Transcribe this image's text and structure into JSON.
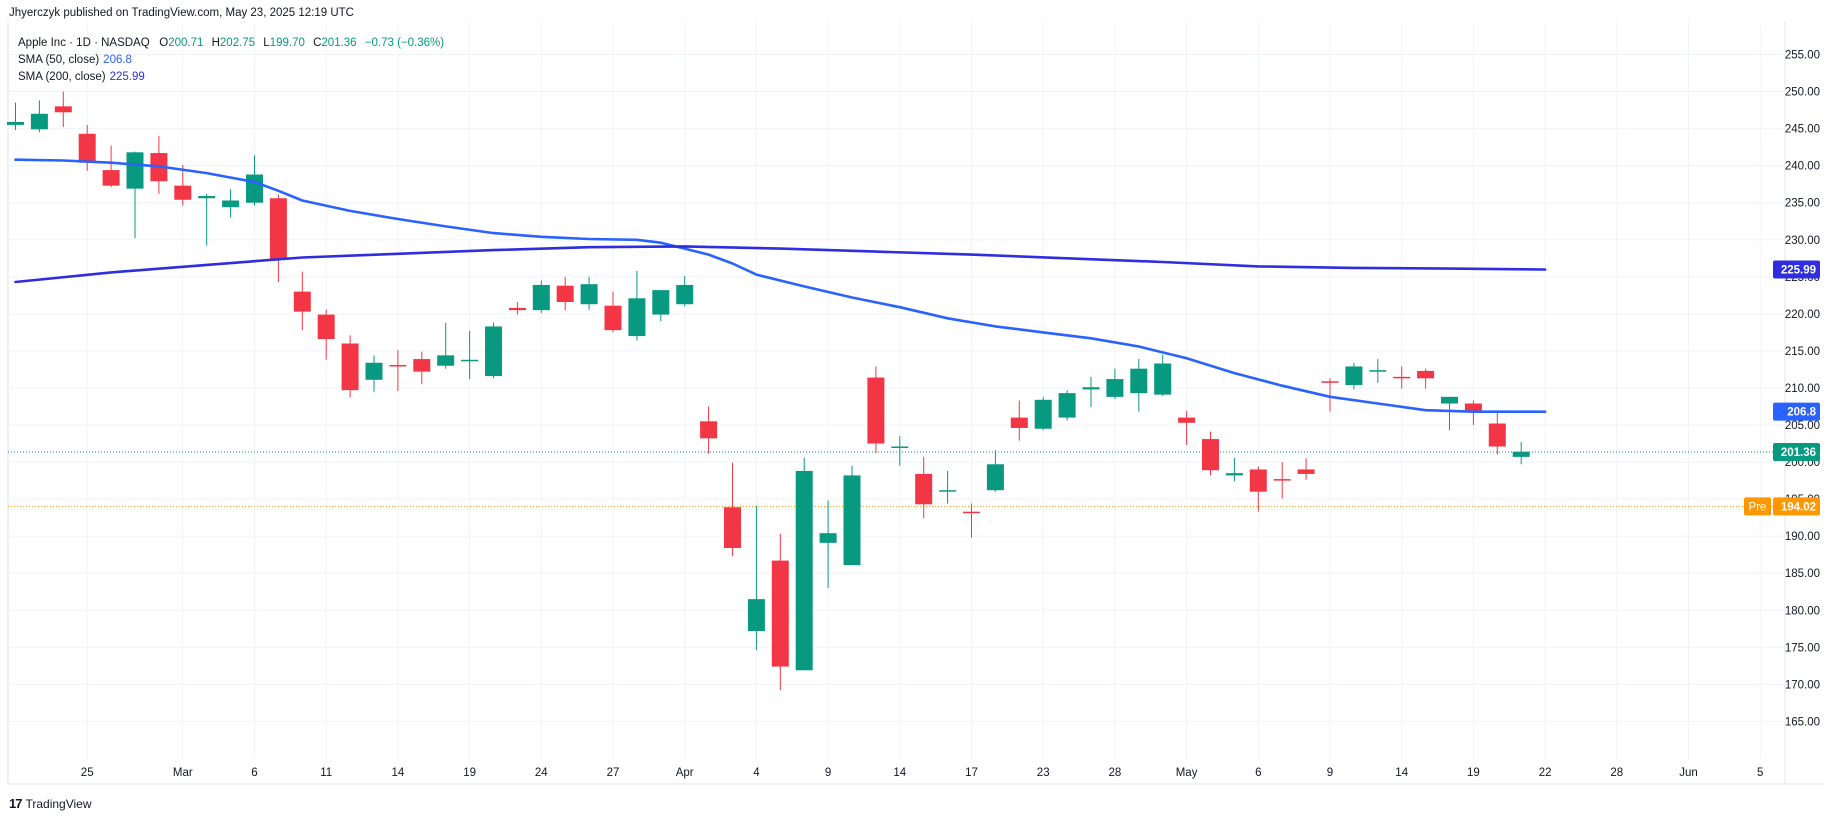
{
  "publisher": "Jhyerczyk published on TradingView.com, May 23, 2025 12:19 UTC",
  "legend": {
    "symbol": "Apple Inc · 1D · NASDAQ",
    "o_label": "O",
    "o": "200.71",
    "h_label": "H",
    "h": "202.75",
    "l_label": "L",
    "l": "199.70",
    "c_label": "C",
    "c": "201.36",
    "change": "−0.73 (−0.36%)",
    "sma50_label": "SMA (50, close)",
    "sma50_value": "206.8",
    "sma200_label": "SMA (200, close)",
    "sma200_value": "225.99"
  },
  "footer": {
    "logo": "17",
    "brand": "TradingView"
  },
  "colors": {
    "up": "#089981",
    "down": "#f23645",
    "sma50": "#2962ff",
    "sma200": "#2e2ee0",
    "pre": "#ff9800"
  },
  "chart_data": {
    "type": "candlestick",
    "title": "Apple Inc · 1D · NASDAQ",
    "ylim": [
      161,
      258
    ],
    "y_ticks": [
      "255.00",
      "250.00",
      "245.00",
      "240.00",
      "235.00",
      "230.00",
      "225.00",
      "220.00",
      "215.00",
      "210.00",
      "205.00",
      "200.00",
      "195.00",
      "190.00",
      "185.00",
      "180.00",
      "175.00",
      "170.00",
      "165.00"
    ],
    "x_ticks": [
      {
        "label": "25",
        "day": 3
      },
      {
        "label": "Mar",
        "day": 7
      },
      {
        "label": "6",
        "day": 10
      },
      {
        "label": "11",
        "day": 13
      },
      {
        "label": "14",
        "day": 16
      },
      {
        "label": "19",
        "day": 19
      },
      {
        "label": "24",
        "day": 22
      },
      {
        "label": "27",
        "day": 25
      },
      {
        "label": "Apr",
        "day": 28
      },
      {
        "label": "4",
        "day": 31
      },
      {
        "label": "9",
        "day": 34
      },
      {
        "label": "14",
        "day": 37
      },
      {
        "label": "17",
        "day": 40
      },
      {
        "label": "23",
        "day": 43
      },
      {
        "label": "28",
        "day": 46
      },
      {
        "label": "May",
        "day": 49
      },
      {
        "label": "6",
        "day": 52
      },
      {
        "label": "9",
        "day": 55
      },
      {
        "label": "14",
        "day": 58
      },
      {
        "label": "19",
        "day": 61
      },
      {
        "label": "22",
        "day": 64
      },
      {
        "label": "28",
        "day": 67
      },
      {
        "label": "Jun",
        "day": 70
      },
      {
        "label": "5",
        "day": 73
      }
    ],
    "candles": [
      {
        "o": 245.5,
        "h": 248.5,
        "l": 244.8,
        "c": 245.9
      },
      {
        "o": 244.9,
        "h": 248.8,
        "l": 244.5,
        "c": 247.0
      },
      {
        "o": 248.0,
        "h": 250.0,
        "l": 245.2,
        "c": 247.2
      },
      {
        "o": 244.3,
        "h": 245.5,
        "l": 239.3,
        "c": 240.4
      },
      {
        "o": 239.4,
        "h": 242.7,
        "l": 237.1,
        "c": 237.3
      },
      {
        "o": 236.9,
        "h": 241.9,
        "l": 230.2,
        "c": 241.8
      },
      {
        "o": 241.7,
        "h": 244.0,
        "l": 236.2,
        "c": 237.9
      },
      {
        "o": 237.3,
        "h": 240.1,
        "l": 234.6,
        "c": 235.4
      },
      {
        "o": 235.6,
        "h": 236.2,
        "l": 229.2,
        "c": 235.9
      },
      {
        "o": 234.4,
        "h": 236.8,
        "l": 233.0,
        "c": 235.3
      },
      {
        "o": 235.0,
        "h": 241.4,
        "l": 234.6,
        "c": 238.8
      },
      {
        "o": 235.6,
        "h": 236.1,
        "l": 224.3,
        "c": 227.4
      },
      {
        "o": 223.0,
        "h": 225.7,
        "l": 217.8,
        "c": 220.3
      },
      {
        "o": 219.9,
        "h": 220.6,
        "l": 213.8,
        "c": 216.6
      },
      {
        "o": 216.0,
        "h": 217.1,
        "l": 208.7,
        "c": 209.7
      },
      {
        "o": 211.1,
        "h": 214.4,
        "l": 209.5,
        "c": 213.4
      },
      {
        "o": 213.1,
        "h": 215.1,
        "l": 209.6,
        "c": 213.0
      },
      {
        "o": 213.9,
        "h": 214.9,
        "l": 210.5,
        "c": 212.2
      },
      {
        "o": 213.0,
        "h": 218.8,
        "l": 212.6,
        "c": 214.4
      },
      {
        "o": 213.8,
        "h": 217.7,
        "l": 211.2,
        "c": 213.8
      },
      {
        "o": 211.6,
        "h": 218.8,
        "l": 211.3,
        "c": 218.3
      },
      {
        "o": 220.8,
        "h": 221.6,
        "l": 219.9,
        "c": 220.5
      },
      {
        "o": 220.5,
        "h": 224.5,
        "l": 220.1,
        "c": 223.9
      },
      {
        "o": 223.8,
        "h": 225.0,
        "l": 220.5,
        "c": 221.6
      },
      {
        "o": 221.3,
        "h": 225.0,
        "l": 220.5,
        "c": 224.0
      },
      {
        "o": 221.1,
        "h": 223.0,
        "l": 217.5,
        "c": 217.8
      },
      {
        "o": 217.0,
        "h": 225.8,
        "l": 216.4,
        "c": 222.1
      },
      {
        "o": 219.9,
        "h": 223.2,
        "l": 219.0,
        "c": 223.2
      },
      {
        "o": 221.3,
        "h": 225.1,
        "l": 221.0,
        "c": 223.9
      },
      {
        "o": 205.5,
        "h": 207.5,
        "l": 201.1,
        "c": 203.2
      },
      {
        "o": 193.9,
        "h": 199.9,
        "l": 187.3,
        "c": 188.4
      },
      {
        "o": 177.2,
        "h": 194.1,
        "l": 174.6,
        "c": 181.5
      },
      {
        "o": 186.7,
        "h": 190.3,
        "l": 169.2,
        "c": 172.4
      },
      {
        "o": 171.9,
        "h": 200.6,
        "l": 171.9,
        "c": 198.8
      },
      {
        "o": 189.1,
        "h": 194.8,
        "l": 183.0,
        "c": 190.4
      },
      {
        "o": 186.1,
        "h": 199.5,
        "l": 186.1,
        "c": 198.2
      },
      {
        "o": 211.4,
        "h": 212.9,
        "l": 201.2,
        "c": 202.5
      },
      {
        "o": 201.9,
        "h": 203.5,
        "l": 199.5,
        "c": 202.1
      },
      {
        "o": 198.4,
        "h": 200.7,
        "l": 192.4,
        "c": 194.3
      },
      {
        "o": 196.2,
        "h": 198.8,
        "l": 194.4,
        "c": 196.2
      },
      {
        "o": 193.3,
        "h": 194.4,
        "l": 189.8,
        "c": 193.1
      },
      {
        "o": 196.2,
        "h": 201.6,
        "l": 196.0,
        "c": 199.7
      },
      {
        "o": 206.0,
        "h": 208.3,
        "l": 202.9,
        "c": 204.6
      },
      {
        "o": 204.5,
        "h": 208.8,
        "l": 204.3,
        "c": 208.4
      },
      {
        "o": 206.0,
        "h": 209.7,
        "l": 205.6,
        "c": 209.3
      },
      {
        "o": 209.8,
        "h": 211.5,
        "l": 207.4,
        "c": 210.1
      },
      {
        "o": 208.8,
        "h": 212.6,
        "l": 208.5,
        "c": 211.2
      },
      {
        "o": 209.3,
        "h": 213.9,
        "l": 206.8,
        "c": 212.6
      },
      {
        "o": 209.1,
        "h": 214.5,
        "l": 208.9,
        "c": 213.3
      },
      {
        "o": 206.0,
        "h": 206.9,
        "l": 202.3,
        "c": 205.3
      },
      {
        "o": 203.1,
        "h": 204.1,
        "l": 198.2,
        "c": 198.9
      },
      {
        "o": 198.2,
        "h": 200.6,
        "l": 197.4,
        "c": 198.5
      },
      {
        "o": 199.0,
        "h": 199.4,
        "l": 193.3,
        "c": 196.0
      },
      {
        "o": 197.7,
        "h": 200.0,
        "l": 195.1,
        "c": 197.5
      },
      {
        "o": 199.0,
        "h": 200.5,
        "l": 197.6,
        "c": 198.4
      },
      {
        "o": 210.9,
        "h": 211.3,
        "l": 206.8,
        "c": 210.8
      },
      {
        "o": 210.4,
        "h": 213.4,
        "l": 209.8,
        "c": 212.9
      },
      {
        "o": 212.3,
        "h": 213.9,
        "l": 210.7,
        "c": 212.4
      },
      {
        "o": 211.5,
        "h": 212.9,
        "l": 209.9,
        "c": 211.3
      },
      {
        "o": 212.3,
        "h": 212.6,
        "l": 209.9,
        "c": 211.3
      },
      {
        "o": 207.9,
        "h": 208.8,
        "l": 204.3,
        "c": 208.8
      },
      {
        "o": 207.9,
        "h": 208.3,
        "l": 205.0,
        "c": 206.9
      },
      {
        "o": 205.2,
        "h": 206.7,
        "l": 201.0,
        "c": 202.1
      },
      {
        "o": 200.7,
        "h": 202.7,
        "l": 199.7,
        "c": 201.4
      }
    ],
    "series": [
      {
        "name": "SMA (50, close)",
        "points": [
          [
            0,
            240.8
          ],
          [
            2,
            240.7
          ],
          [
            4,
            240.4
          ],
          [
            6,
            239.9
          ],
          [
            8,
            239.0
          ],
          [
            10,
            237.8
          ],
          [
            11,
            236.6
          ],
          [
            12,
            235.3
          ],
          [
            14,
            233.9
          ],
          [
            16,
            232.8
          ],
          [
            18,
            231.8
          ],
          [
            20,
            230.9
          ],
          [
            22,
            230.4
          ],
          [
            24,
            230.1
          ],
          [
            26,
            230.0
          ],
          [
            27,
            229.6
          ],
          [
            28,
            228.8
          ],
          [
            29,
            228.0
          ],
          [
            30,
            226.8
          ],
          [
            31,
            225.3
          ],
          [
            33,
            223.7
          ],
          [
            35,
            222.2
          ],
          [
            37,
            220.9
          ],
          [
            39,
            219.4
          ],
          [
            41,
            218.3
          ],
          [
            43,
            217.5
          ],
          [
            45,
            216.7
          ],
          [
            47,
            215.6
          ],
          [
            49,
            214.0
          ],
          [
            51,
            212.0
          ],
          [
            53,
            210.3
          ],
          [
            55,
            208.8
          ],
          [
            57,
            207.9
          ],
          [
            59,
            207.0
          ],
          [
            61,
            206.8
          ],
          [
            64,
            206.8
          ]
        ]
      },
      {
        "name": "SMA (200, close)",
        "points": [
          [
            0,
            224.3
          ],
          [
            4,
            225.6
          ],
          [
            8,
            226.6
          ],
          [
            12,
            227.6
          ],
          [
            16,
            228.1
          ],
          [
            20,
            228.6
          ],
          [
            24,
            229.0
          ],
          [
            28,
            229.1
          ],
          [
            32,
            228.8
          ],
          [
            36,
            228.4
          ],
          [
            40,
            228.0
          ],
          [
            44,
            227.5
          ],
          [
            48,
            227.0
          ],
          [
            52,
            226.4
          ],
          [
            56,
            226.2
          ],
          [
            60,
            226.1
          ],
          [
            64,
            225.99
          ]
        ]
      }
    ],
    "price_lines": [
      {
        "name": "last",
        "value": 201.36,
        "label": "201.36"
      },
      {
        "name": "pre",
        "value": 194.02,
        "label": "194.02",
        "tag": "Pre"
      }
    ],
    "axis_labels": [
      {
        "name": "sma200",
        "value": 225.99,
        "label": "225.99"
      },
      {
        "name": "sma50",
        "value": 206.8,
        "label": "206.8"
      }
    ]
  }
}
